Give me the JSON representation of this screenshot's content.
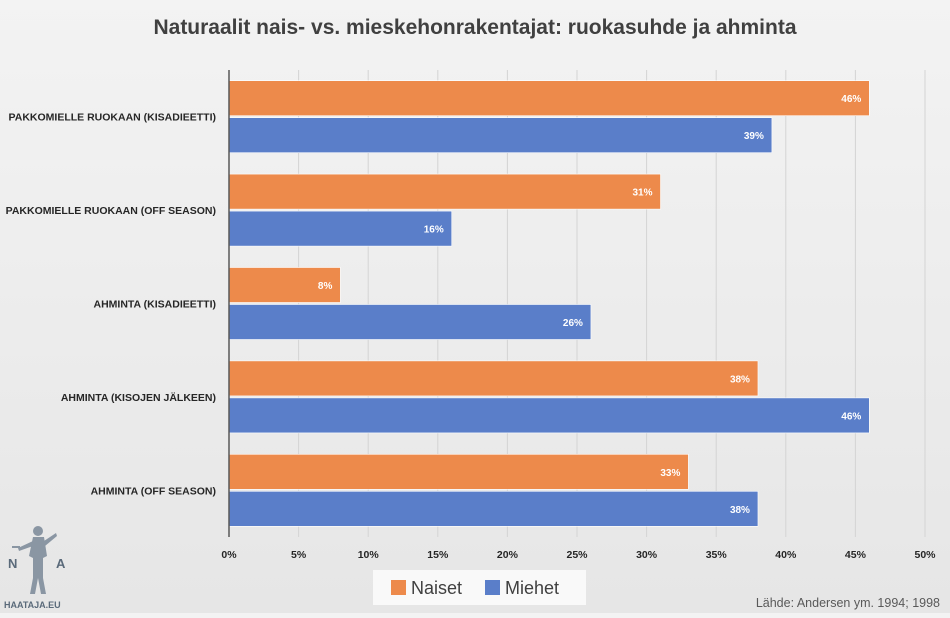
{
  "chart_data": {
    "type": "bar",
    "orientation": "horizontal",
    "title": "Naturaalit nais- vs. mieskehonrakentajat: ruokasuhde ja ahminta",
    "categories": [
      "PAKKOMIELLE RUOKAAN (KISADIEETTI)",
      "PAKKOMIELLE RUOKAAN (OFF SEASON)",
      "AHMINTA (KISADIEETTI)",
      "AHMINTA (KISOJEN JÄLKEEN)",
      "AHMINTA (OFF SEASON)"
    ],
    "series": [
      {
        "name": "Naiset",
        "color": "#ed8a4b",
        "values": [
          46,
          31,
          8,
          38,
          33
        ],
        "labels": [
          "46%",
          "31%",
          "8%",
          "38%",
          "33%"
        ]
      },
      {
        "name": "Miehet",
        "color": "#5a7ec9",
        "values": [
          39,
          16,
          26,
          46,
          38
        ],
        "labels": [
          "39%",
          "16%",
          "26%",
          "46%",
          "38%"
        ]
      }
    ],
    "xlim": [
      0,
      50
    ],
    "x_ticks": [
      0,
      5,
      10,
      15,
      20,
      25,
      30,
      35,
      40,
      45,
      50
    ],
    "x_tick_labels": [
      "0%",
      "5%",
      "10%",
      "15%",
      "20%",
      "25%",
      "30%",
      "35%",
      "40%",
      "45%",
      "50%"
    ],
    "grid": true,
    "legend_position": "bottom"
  },
  "source": "Lähde: Andersen ym. 1994; 1998",
  "logo": {
    "letters_left": "N",
    "letters_right": "A",
    "site": "HAATAJA.EU"
  }
}
